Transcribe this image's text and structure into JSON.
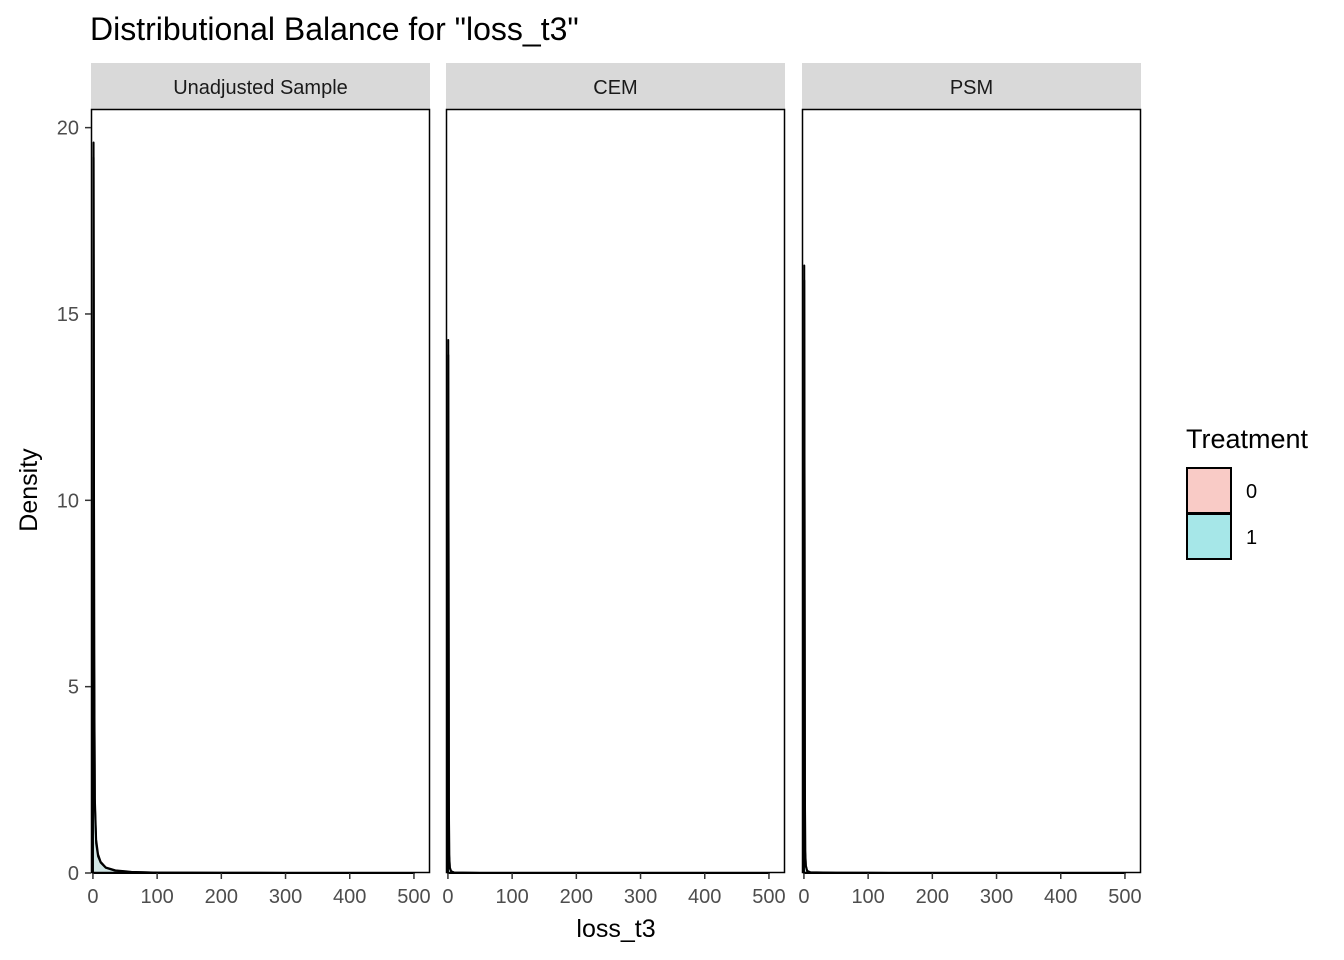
{
  "chart_data": {
    "type": "area",
    "title": "Distributional Balance for \"loss_t3\"",
    "xlabel": "loss_t3",
    "ylabel": "Density",
    "xlim": [
      -3,
      525
    ],
    "ylim": [
      0,
      20.5
    ],
    "x_ticks": [
      0,
      100,
      200,
      300,
      400,
      500
    ],
    "y_ticks": [
      0,
      5,
      10,
      15,
      20
    ],
    "x_tick_labels": [
      "0",
      "100",
      "200",
      "300",
      "400",
      "500"
    ],
    "y_tick_labels": [
      "0",
      "5",
      "10",
      "15",
      "20"
    ],
    "grid": false,
    "legend": {
      "title": "Treatment",
      "placement": "right",
      "entries": [
        {
          "label": "0",
          "color": "#F8766D",
          "fill": "#F9CBC6"
        },
        {
          "label": "1",
          "color": "#00BFC4",
          "fill": "#A6E7E8"
        }
      ]
    },
    "panels": [
      {
        "label": "Unadjusted Sample",
        "series": [
          {
            "name": "0",
            "x": [
              0,
              1,
              2,
              3,
              5,
              8,
              12,
              20,
              35,
              60,
              100,
              200,
              300,
              400,
              500
            ],
            "y": [
              0,
              19.6,
              6.0,
              2.0,
              0.9,
              0.5,
              0.3,
              0.15,
              0.07,
              0.03,
              0.01,
              0.003,
              0.001,
              0.0005,
              0
            ]
          },
          {
            "name": "1",
            "x": [
              0,
              1,
              2,
              3,
              5,
              8,
              12,
              20,
              35,
              60,
              100,
              200,
              300,
              400,
              500
            ],
            "y": [
              0,
              19.2,
              5.5,
              1.8,
              0.8,
              0.45,
              0.28,
              0.14,
              0.06,
              0.025,
              0.01,
              0.003,
              0.001,
              0.0005,
              0
            ]
          }
        ]
      },
      {
        "label": "CEM",
        "series": [
          {
            "name": "0",
            "x": [
              0,
              0.5,
              1,
              1.5,
              2,
              3,
              5,
              10,
              50,
              100,
              200,
              300,
              400,
              500
            ],
            "y": [
              0,
              14.3,
              9.0,
              2.0,
              0.5,
              0.15,
              0.05,
              0.01,
              0,
              0,
              0,
              0,
              0,
              0
            ]
          },
          {
            "name": "1",
            "x": [
              0,
              0.5,
              1,
              1.5,
              2,
              3,
              5,
              10,
              50,
              100,
              200,
              300,
              400,
              500
            ],
            "y": [
              0,
              13.9,
              8.5,
              1.8,
              0.45,
              0.12,
              0.04,
              0.01,
              0,
              0,
              0,
              0,
              0,
              0
            ]
          }
        ]
      },
      {
        "label": "PSM",
        "series": [
          {
            "name": "0",
            "x": [
              0,
              0.5,
              1,
              1.5,
              2,
              3,
              5,
              10,
              50,
              100,
              200,
              300,
              400,
              500
            ],
            "y": [
              0,
              16.3,
              10.0,
              2.5,
              0.6,
              0.2,
              0.06,
              0.02,
              0.005,
              0.002,
              0,
              0,
              0,
              0
            ]
          },
          {
            "name": "1",
            "x": [
              0,
              0.5,
              1,
              1.5,
              2,
              3,
              5,
              10,
              50,
              100,
              200,
              300,
              400,
              500
            ],
            "y": [
              0,
              15.9,
              9.5,
              2.3,
              0.55,
              0.18,
              0.05,
              0.015,
              0.004,
              0.002,
              0,
              0,
              0,
              0
            ]
          }
        ]
      }
    ]
  },
  "colors": {
    "strip_background": "#D9D9D9",
    "panel_border": "#000000",
    "tick_text": "#4D4D4D"
  }
}
